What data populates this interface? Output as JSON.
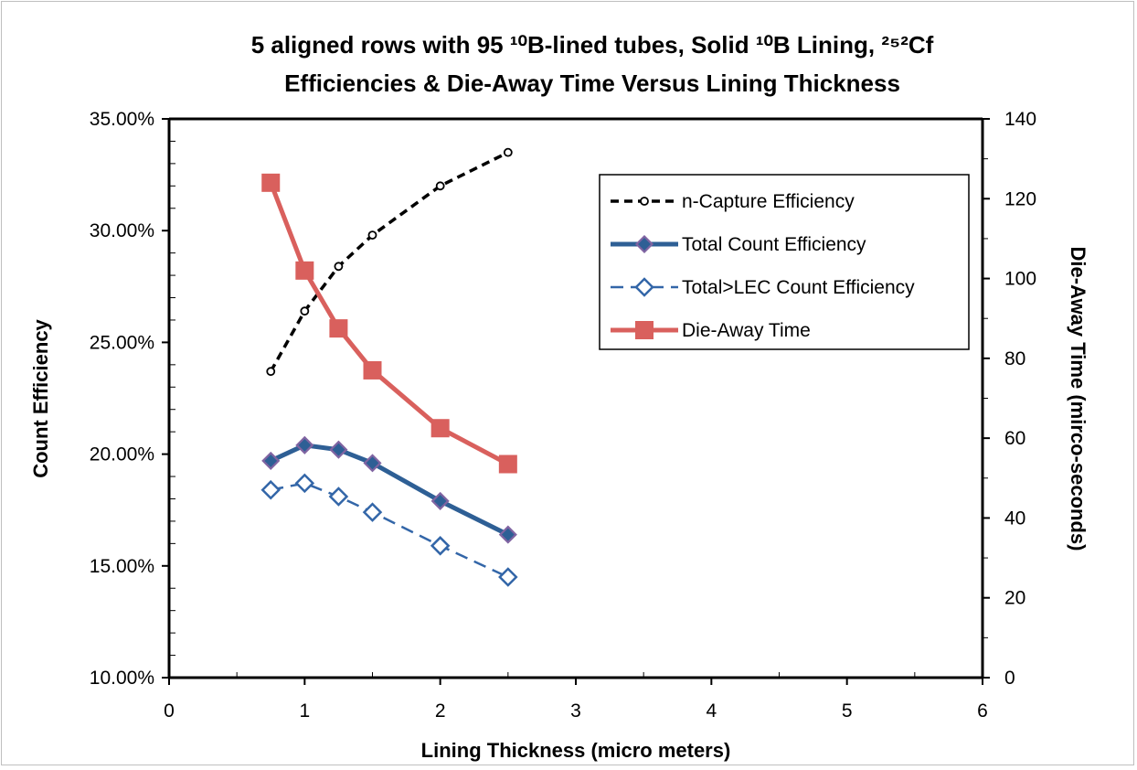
{
  "chart_data": {
    "type": "line",
    "title_line1": "5 aligned rows with 95 ¹⁰B-lined tubes, Solid ¹⁰B Lining, ²⁵²Cf",
    "title_line2": "Efficiencies & Die-Away Time Versus Lining Thickness",
    "xlabel": "Lining Thickness (micro meters)",
    "ylabel": "Count Efficiency",
    "y2label": "Die-Away Time (mirco-seconds)",
    "xlim": [
      0,
      6
    ],
    "ylim": [
      0.1,
      0.35
    ],
    "y2lim": [
      0,
      140
    ],
    "x_ticks": [
      "0",
      "1",
      "2",
      "3",
      "4",
      "5",
      "6"
    ],
    "y_ticks": [
      "10.00%",
      "15.00%",
      "20.00%",
      "25.00%",
      "30.00%",
      "35.00%"
    ],
    "y2_ticks": [
      "0",
      "20",
      "40",
      "60",
      "80",
      "100",
      "120",
      "140"
    ],
    "grid": false,
    "legend_position": "top-right",
    "series": [
      {
        "name": "n-Capture Efficiency",
        "axis": "left",
        "color": "#000000",
        "style": "dashed",
        "marker": "circle-open",
        "x": [
          0.75,
          1.0,
          1.25,
          1.5,
          2.0,
          2.5
        ],
        "values": [
          0.237,
          0.264,
          0.284,
          0.298,
          0.32,
          0.335
        ]
      },
      {
        "name": "Total Count Efficiency",
        "axis": "left",
        "color": "#2e5f95",
        "style": "solid",
        "marker": "diamond-filled",
        "x": [
          0.75,
          1.0,
          1.25,
          1.5,
          2.0,
          2.5
        ],
        "values": [
          0.197,
          0.204,
          0.202,
          0.196,
          0.179,
          0.164
        ]
      },
      {
        "name": "Total>LEC Count Efficiency",
        "axis": "left",
        "color": "#3366a8",
        "style": "dashed",
        "marker": "diamond-open",
        "x": [
          0.75,
          1.0,
          1.25,
          1.5,
          2.0,
          2.5
        ],
        "values": [
          0.184,
          0.187,
          0.181,
          0.174,
          0.159,
          0.145
        ]
      },
      {
        "name": "Die-Away Time",
        "axis": "right",
        "color": "#d9605d",
        "style": "solid",
        "marker": "square-filled",
        "x": [
          0.75,
          1.0,
          1.25,
          1.5,
          2.0,
          2.5
        ],
        "values": [
          124,
          102,
          87.5,
          77,
          62.5,
          53.5
        ]
      }
    ]
  }
}
